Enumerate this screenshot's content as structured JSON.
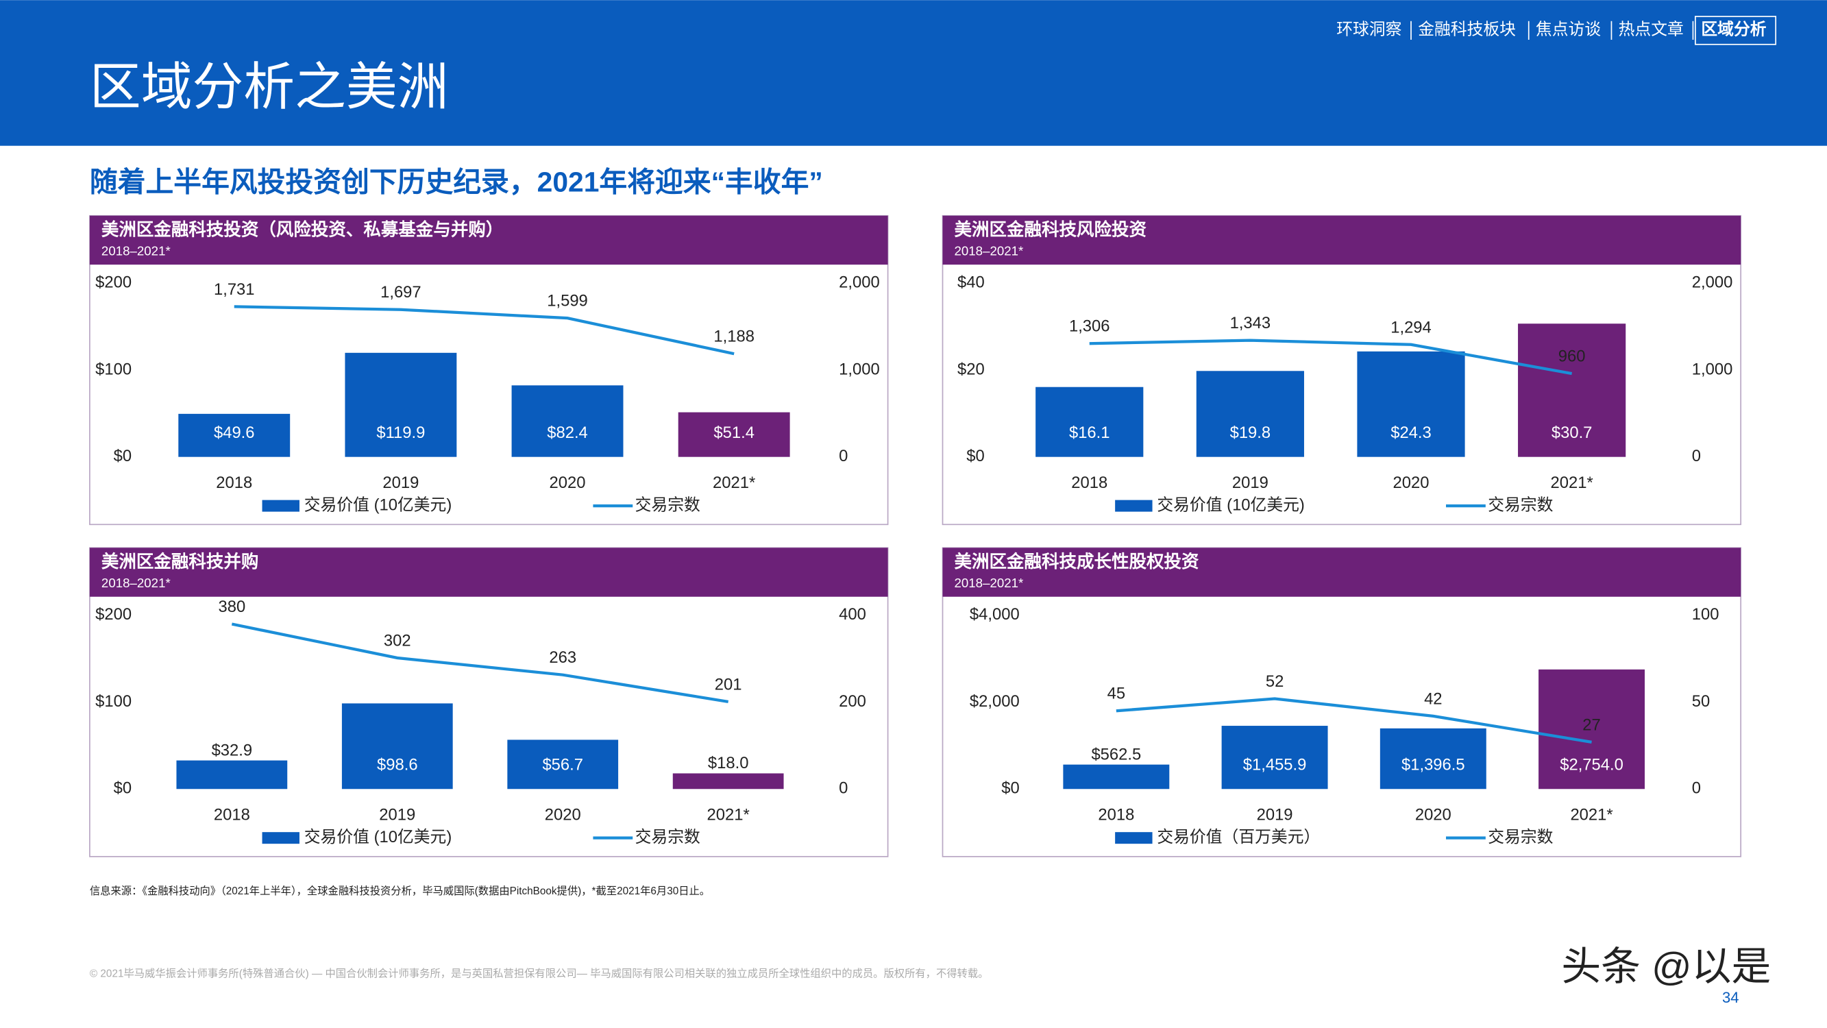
{
  "nav": {
    "items": [
      "环球洞察",
      "金融科技板块",
      "焦点访谈",
      "热点文章",
      "区域分析"
    ]
  },
  "header": {
    "title": "区域分析之美洲"
  },
  "headline": "随着上半年风投投资创下历史纪录，2021年将迎来“丰收年”",
  "source": "信息来源：《金融科技动向》（2021年上半年），全球金融科技投资分析，毕马威国际(数据由PitchBook提供)，*截至2021年6月30日止。",
  "footer": {
    "copyright": "© 2021毕马威华振会计师事务所(特殊普通合伙) — 中国合伙制会计师事务所，是与英国私营担保有限公司— 毕马威国际有限公司相关联的独立成员所全球性组织中的成员。版权所有，不得转载。",
    "page": "34",
    "watermark": "头条 @以是"
  },
  "chart_data": [
    {
      "type": "combo",
      "title": "美洲区金融科技投资（风险投资、私募基金与并购）",
      "subtitle": "2018–2021*",
      "categories": [
        "2018",
        "2019",
        "2020",
        "2021*"
      ],
      "series": [
        {
          "name": "交易价值 (10亿美元)",
          "type": "bar",
          "colors": [
            "#0a5cbd",
            "#0a5cbd",
            "#0a5cbd",
            "#6c2178"
          ],
          "values": [
            49.6,
            119.9,
            82.4,
            51.4
          ],
          "value_labels": [
            "$49.6",
            "$119.9",
            "$82.4",
            "$51.4"
          ]
        },
        {
          "name": "交易宗数",
          "type": "line",
          "axis": "y2",
          "color": "#1b8ed8",
          "values": [
            1731,
            1697,
            1599,
            1188
          ],
          "value_labels": [
            "1,731",
            "1,697",
            "1,599",
            "1,188"
          ]
        }
      ],
      "ylim": [
        0,
        200
      ],
      "yticks": [
        {
          "value": 0,
          "label": "$0"
        },
        {
          "value": 100,
          "label": "$100"
        },
        {
          "value": 200,
          "label": "$200"
        }
      ],
      "y2lim": [
        0,
        2000
      ],
      "y2ticks": [
        0,
        {
          "value": 1000,
          "label": "1,000"
        },
        {
          "value": 2000,
          "label": "2,000"
        }
      ],
      "grid": false
    },
    {
      "type": "combo",
      "title": "美洲区金融科技风险投资",
      "subtitle": "2018–2021*",
      "categories": [
        "2018",
        "2019",
        "2020",
        "2021*"
      ],
      "series": [
        {
          "name": "交易价值 (10亿美元)",
          "type": "bar",
          "colors": [
            "#0a5cbd",
            "#0a5cbd",
            "#0a5cbd",
            "#6c2178"
          ],
          "values": [
            16.1,
            19.8,
            24.3,
            30.7
          ],
          "value_labels": [
            "$16.1",
            "$19.8",
            "$24.3",
            "$30.7"
          ]
        },
        {
          "name": "交易宗数",
          "type": "line",
          "axis": "y2",
          "color": "#1b8ed8",
          "values": [
            1306,
            1343,
            1294,
            960
          ],
          "value_labels": [
            "1,306",
            "1,343",
            "1,294",
            "960"
          ]
        }
      ],
      "ylim": [
        0,
        40
      ],
      "yticks": [
        {
          "value": 0,
          "label": "$0"
        },
        {
          "value": 20,
          "label": "$20"
        },
        {
          "value": 40,
          "label": "$40"
        }
      ],
      "y2lim": [
        0,
        2000
      ],
      "y2ticks": [
        0,
        {
          "value": 1000,
          "label": "1,000"
        },
        {
          "value": 2000,
          "label": "2,000"
        }
      ],
      "grid": false
    },
    {
      "type": "combo",
      "title": "美洲区金融科技并购",
      "subtitle": "2018–2021*",
      "categories": [
        "2018",
        "2019",
        "2020",
        "2021*"
      ],
      "series": [
        {
          "name": "交易价值 (10亿美元)",
          "type": "bar",
          "colors": [
            "#0a5cbd",
            "#0a5cbd",
            "#0a5cbd",
            "#6c2178"
          ],
          "values": [
            32.9,
            98.6,
            56.7,
            18.0
          ],
          "value_labels": [
            "$32.9",
            "$98.6",
            "$56.7",
            "$18.0"
          ]
        },
        {
          "name": "交易宗数",
          "type": "line",
          "axis": "y2",
          "color": "#1b8ed8",
          "values": [
            380,
            302,
            263,
            201
          ]
        }
      ],
      "ylim": [
        0,
        200
      ],
      "yticks": [
        {
          "value": 0,
          "label": "$0"
        },
        {
          "value": 100,
          "label": "$100"
        },
        {
          "value": 200,
          "label": "$200"
        }
      ],
      "y2lim": [
        0,
        400
      ],
      "y2ticks": [
        0,
        200,
        400
      ],
      "grid": false
    },
    {
      "type": "combo",
      "title": "美洲区金融科技成长性股权投资",
      "subtitle": "2018–2021*",
      "categories": [
        "2018",
        "2019",
        "2020",
        "2021*"
      ],
      "series": [
        {
          "name": "交易价值（百万美元）",
          "type": "bar",
          "colors": [
            "#0a5cbd",
            "#0a5cbd",
            "#0a5cbd",
            "#6c2178"
          ],
          "values": [
            562.5,
            1455.9,
            1396.5,
            2754.0
          ],
          "value_labels": [
            "$562.5",
            "$1,455.9",
            "$1,396.5",
            "$2,754.0"
          ]
        },
        {
          "name": "交易宗数",
          "type": "line",
          "axis": "y2",
          "color": "#1b8ed8",
          "values": [
            45,
            52,
            42,
            27
          ]
        }
      ],
      "ylim": [
        0,
        4000
      ],
      "yticks": [
        {
          "value": 0,
          "label": "$0"
        },
        {
          "value": 2000,
          "label": "$2,000"
        },
        {
          "value": 4000,
          "label": "$4,000"
        }
      ],
      "y2lim": [
        0,
        100
      ],
      "y2ticks": [
        0,
        50,
        100
      ],
      "grid": false
    }
  ]
}
